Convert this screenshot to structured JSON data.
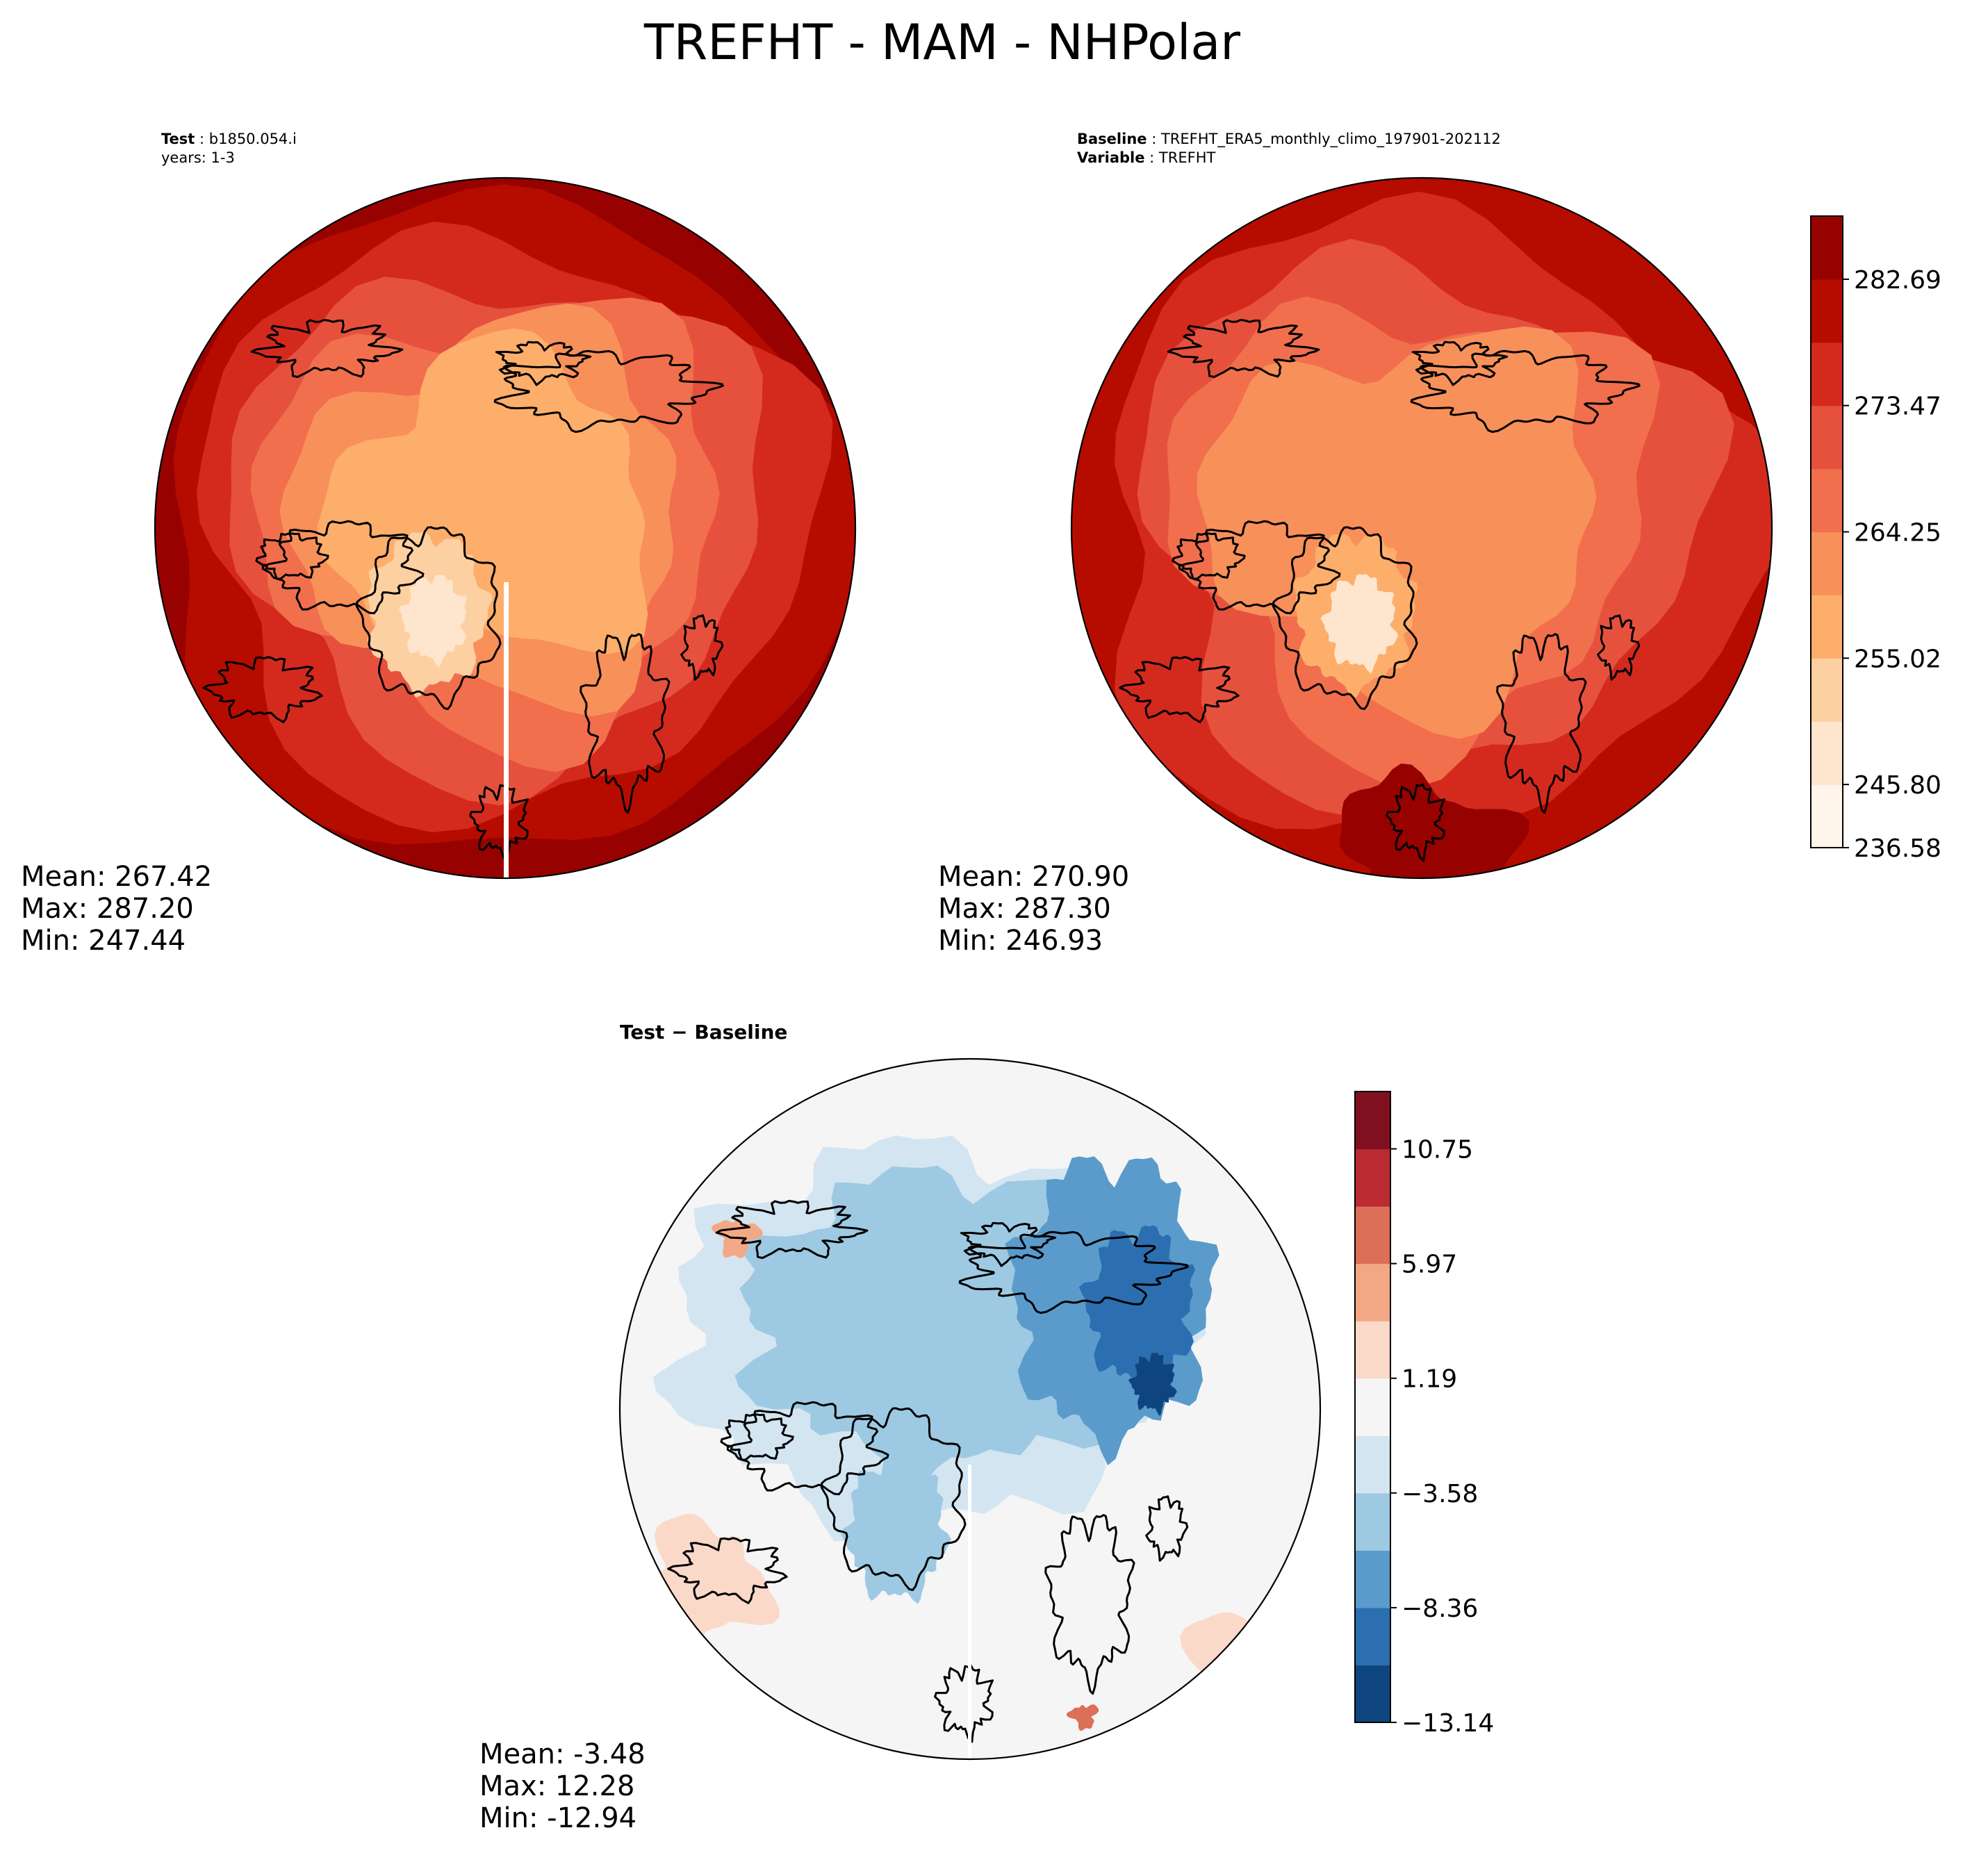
{
  "figure_title": "TREFHT - MAM - NHPolar",
  "chart_data": [
    {
      "type": "heatmap",
      "projection": "north-polar-stereographic",
      "variable": "TREFHT",
      "header": [
        {
          "label": "Test",
          "value": "b1850.054.i"
        },
        {
          "label": "",
          "value": "years: 1-3"
        }
      ],
      "stats": {
        "mean": "Mean: 267.42",
        "max": "Max: 287.20",
        "min": "Min: 247.44"
      },
      "summary": {
        "mean": 267.42,
        "max": 287.2,
        "min": 247.44
      },
      "colormap": "OrRd-style",
      "bands_pole_to_edge": [
        2,
        3,
        4,
        5,
        6,
        7,
        8,
        9
      ]
    },
    {
      "type": "heatmap",
      "projection": "north-polar-stereographic",
      "variable": "TREFHT",
      "header": [
        {
          "label": "Baseline",
          "value": "TREFHT_ERA5_monthly_climo_197901-202112"
        },
        {
          "label": "Variable",
          "value": "TREFHT"
        }
      ],
      "stats": {
        "mean": "Mean: 270.90",
        "max": "Max: 287.30",
        "min": "Min: 246.93"
      },
      "summary": {
        "mean": 270.9,
        "max": 287.3,
        "min": 246.93
      },
      "colorbar": {
        "ticks": [
          "282.69",
          "273.47",
          "264.25",
          "255.02",
          "245.80",
          "236.58"
        ],
        "range": [
          236.58,
          287.3
        ],
        "colors": [
          "#fff5eb",
          "#fee6ce",
          "#fdd0a2",
          "#fdae6b",
          "#f8905a",
          "#f16f4d",
          "#e6513e",
          "#d42a1e",
          "#b60c00",
          "#970200"
        ]
      }
    },
    {
      "type": "heatmap",
      "projection": "north-polar-stereographic",
      "title": "Test − Baseline",
      "stats": {
        "mean": "Mean: -3.48",
        "max": "Max: 12.28",
        "min": "Min: -12.94"
      },
      "summary": {
        "mean": -3.48,
        "max": 12.28,
        "min": -12.94
      },
      "colorbar": {
        "ticks": [
          "10.75",
          "5.97",
          "1.19",
          "−3.58",
          "−8.36",
          "−13.14"
        ],
        "range": [
          -13.14,
          12.28
        ],
        "colors": [
          "#0f457f",
          "#2b6fb0",
          "#5a9bcb",
          "#9ec9e2",
          "#d3e5f1",
          "#f5f5f5",
          "#fbd9c8",
          "#f3a885",
          "#dc6f58",
          "#bb2c32",
          "#80101f"
        ]
      }
    }
  ]
}
